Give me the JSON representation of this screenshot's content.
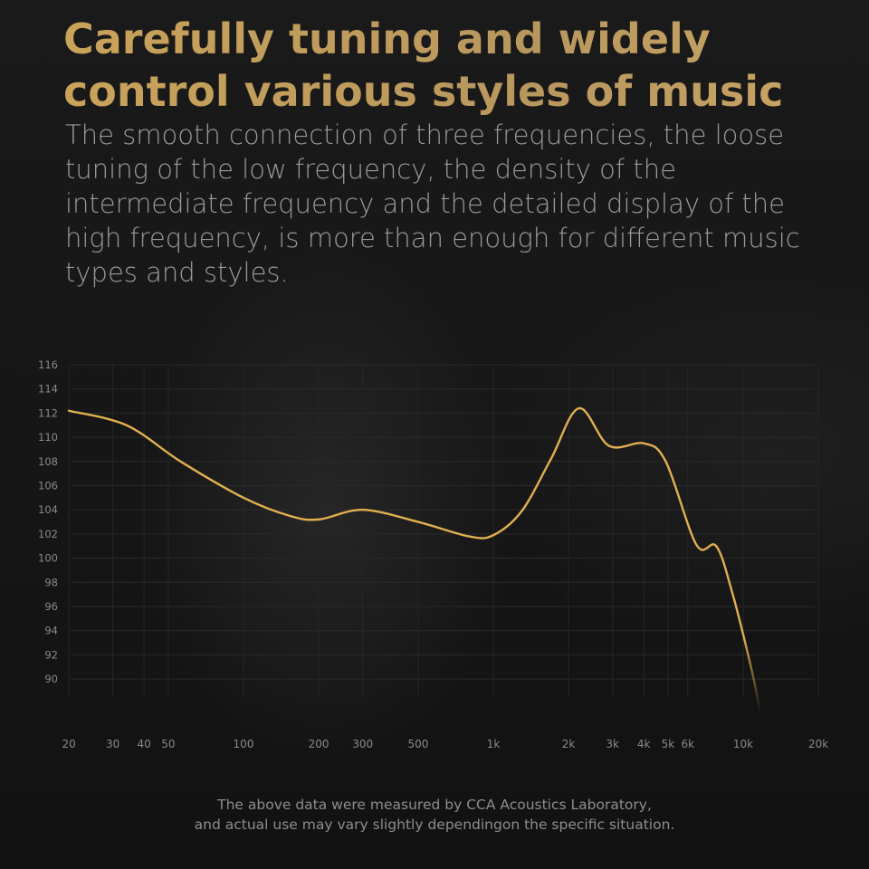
{
  "title": "Carefully tuning and widely control various styles of music",
  "subtitle": "The smooth connection of three frequencies, the loose tuning of the low frequency, the density of the intermediate frequency and the detailed display of the high frequency, is more than enough for different music types and styles.",
  "footnote": [
    "The above data were measured by CCA Acoustics Laboratory,",
    "and actual use may vary slightly dependingon the specific situation."
  ],
  "colors": {
    "title": "#c6a15c",
    "curve": "#e0b050",
    "text": "#9a9a9a"
  },
  "chart_data": {
    "type": "line",
    "x_scale": "log",
    "xlim": [
      20,
      20000
    ],
    "ylim": [
      90,
      116
    ],
    "grid": true,
    "x_ticks": [
      20,
      30,
      40,
      50,
      100,
      200,
      300,
      500,
      1000,
      2000,
      3000,
      4000,
      5000,
      6000,
      10000,
      20000
    ],
    "x_tick_labels": [
      "20",
      "30",
      "40",
      "50",
      "100",
      "200",
      "300",
      "500",
      "1k",
      "2k",
      "3k",
      "4k",
      "5k",
      "6k",
      "10k",
      "20k"
    ],
    "y_ticks": [
      116,
      114,
      112,
      110,
      108,
      106,
      104,
      102,
      100,
      98,
      96,
      94,
      92,
      90
    ],
    "series": [
      {
        "x": [
          20,
          34,
          56,
          100,
          153,
          200,
          300,
          500,
          800,
          1000,
          1300,
          1700,
          2200,
          2900,
          4000,
          4900,
          6500,
          7800,
          9000,
          10800,
          11700
        ],
        "y": [
          112.2,
          111,
          108,
          105,
          103.5,
          103.2,
          104.0,
          103,
          101.8,
          101.9,
          103.9,
          108.2,
          112.4,
          109.3,
          109.5,
          108,
          101.1,
          101,
          97.3,
          90.8,
          87.2
        ]
      }
    ]
  }
}
